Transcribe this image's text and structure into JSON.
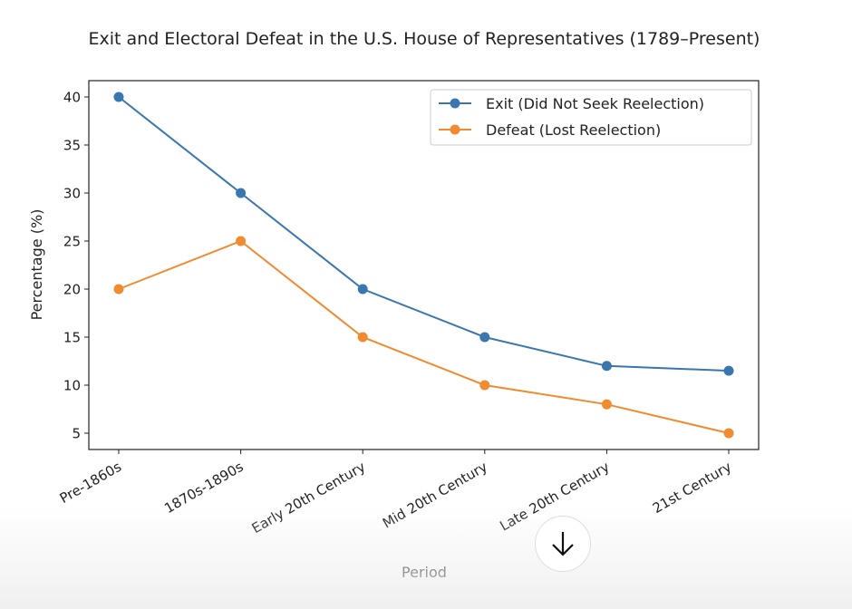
{
  "chart_data": {
    "type": "line",
    "title": "Exit and Electoral Defeat in the U.S. House of Representatives (1789–Present)",
    "xlabel": "Period",
    "ylabel": "Percentage (%)",
    "categories": [
      "Pre-1860s",
      "1870s-1890s",
      "Early 20th Century",
      "Mid 20th Century",
      "Late 20th Century",
      "21st Century"
    ],
    "yticks": [
      5,
      10,
      15,
      20,
      25,
      30,
      35,
      40
    ],
    "ylim": [
      3.3,
      41.7
    ],
    "grid": false,
    "legend_position": "top-right",
    "series": [
      {
        "name": "Exit (Did Not Seek Reelection)",
        "values": [
          40,
          30,
          20,
          15,
          12,
          11.5
        ],
        "color": "#3a76b0"
      },
      {
        "name": "Defeat (Lost Reelection)",
        "values": [
          20,
          25,
          15,
          10,
          8,
          5
        ],
        "color": "#f28a30"
      }
    ]
  },
  "ui": {
    "scroll_down_icon": "arrow-down-icon"
  }
}
